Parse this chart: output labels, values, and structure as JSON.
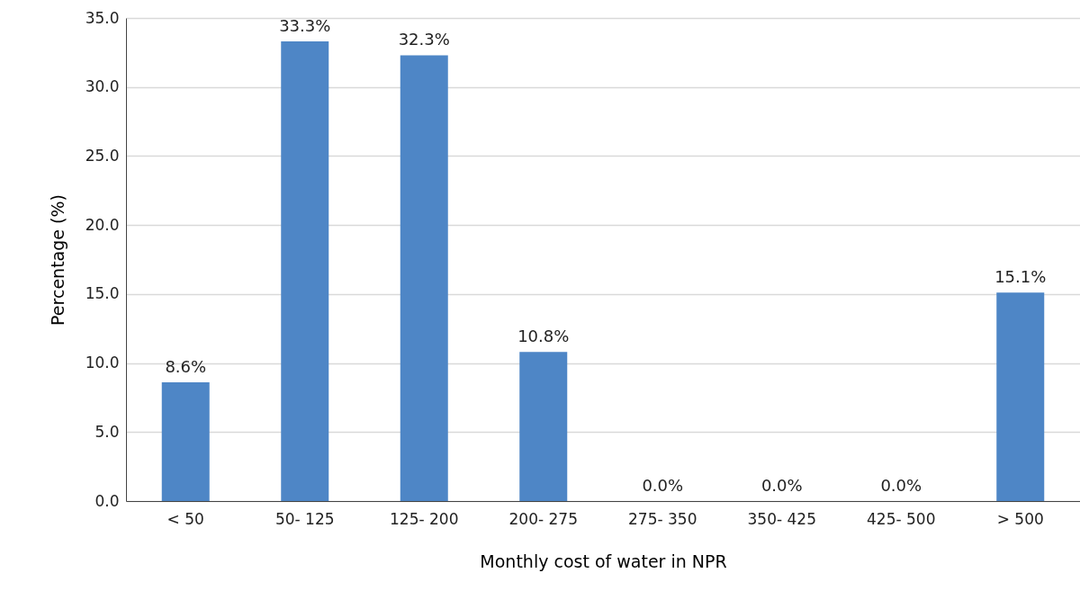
{
  "chart_data": {
    "type": "bar",
    "xlabel": "Monthly cost of water in NPR",
    "ylabel": "Percentage (%)",
    "categories": [
      "< 50",
      "50- 125",
      "125- 200",
      "200- 275",
      "275- 350",
      "350- 425",
      "425- 500",
      "> 500"
    ],
    "values": [
      8.6,
      33.3,
      32.3,
      10.8,
      0.0,
      0.0,
      0.0,
      15.1
    ],
    "value_labels": [
      "8.6%",
      "33.3%",
      "32.3%",
      "10.8%",
      "0.0%",
      "0.0%",
      "0.0%",
      "15.1%"
    ],
    "color": "#4e86c6",
    "ylim": [
      0,
      35
    ],
    "yticks": [
      {
        "value": 0,
        "label": "0.0"
      },
      {
        "value": 5,
        "label": "5.0"
      },
      {
        "value": 10,
        "label": "10.0"
      },
      {
        "value": 15,
        "label": "15.0"
      },
      {
        "value": 20,
        "label": "20.0"
      },
      {
        "value": 25,
        "label": "25.0"
      },
      {
        "value": 30,
        "label": "30.0"
      },
      {
        "value": 35,
        "label": "35.0"
      }
    ],
    "grid": "y"
  }
}
